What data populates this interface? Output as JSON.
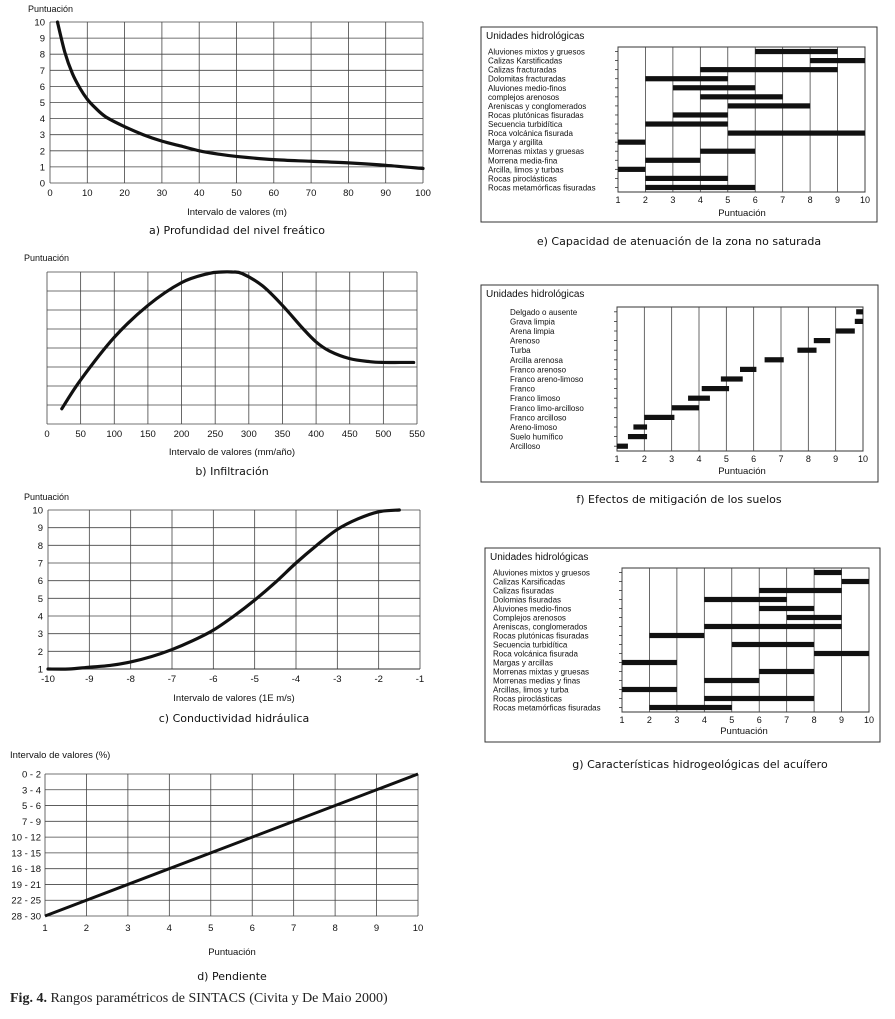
{
  "figure": {
    "label": "Fig. 4.",
    "text": "Rangos paramétricos de SINTACS (Civita y De Maio 2000)"
  },
  "chart_data": [
    {
      "id": "a",
      "type": "line",
      "caption": "a) Profundidad del nivel freático",
      "ylabel": "Puntuación",
      "xlabel": "Intervalo de valores (m)",
      "xlim": [
        0,
        100
      ],
      "ylim": [
        0,
        10
      ],
      "xticks": [
        0,
        10,
        20,
        30,
        40,
        50,
        60,
        70,
        80,
        90,
        100
      ],
      "yticks": [
        0,
        1,
        2,
        3,
        4,
        5,
        6,
        7,
        8,
        9,
        10
      ],
      "x": [
        2,
        4,
        6,
        8,
        10,
        12,
        15,
        20,
        25,
        30,
        35,
        40,
        45,
        50,
        60,
        70,
        80,
        90,
        100
      ],
      "y": [
        10,
        8.1,
        6.8,
        5.9,
        5.2,
        4.7,
        4.1,
        3.5,
        3.0,
        2.6,
        2.3,
        2.0,
        1.8,
        1.65,
        1.45,
        1.35,
        1.25,
        1.1,
        0.9
      ]
    },
    {
      "id": "b",
      "type": "line",
      "caption": "b) Infiltración",
      "ylabel": "Puntuación",
      "xlabel": "Intervalo de valores (mm/año)",
      "xlim": [
        0,
        550
      ],
      "ylim": [
        0,
        10
      ],
      "xticks": [
        0,
        50,
        100,
        150,
        200,
        250,
        300,
        350,
        400,
        450,
        500,
        550
      ],
      "yticks": [],
      "x": [
        22,
        50,
        100,
        150,
        200,
        240,
        260,
        275,
        290,
        320,
        350,
        380,
        400,
        420,
        450,
        480,
        500,
        525,
        545
      ],
      "y": [
        1.0,
        2.9,
        5.7,
        7.8,
        9.3,
        9.9,
        10.0,
        10.0,
        9.9,
        9.1,
        7.8,
        6.3,
        5.4,
        4.8,
        4.3,
        4.1,
        4.05,
        4.05,
        4.05
      ]
    },
    {
      "id": "c",
      "type": "line",
      "caption": "c) Conductividad hidráulica",
      "ylabel": "Puntuación",
      "xlabel": "Intervalo de valores (1E m/s)",
      "xlim": [
        -10,
        -1
      ],
      "ylim": [
        1,
        10
      ],
      "xticks": [
        -10,
        -9,
        -8,
        -7,
        -6,
        -5,
        -4,
        -3,
        -2,
        -1
      ],
      "yticks": [
        1,
        2,
        3,
        4,
        5,
        6,
        7,
        8,
        9,
        10
      ],
      "x": [
        -10,
        -9.5,
        -9,
        -8.5,
        -8,
        -7.5,
        -7,
        -6.5,
        -6,
        -5.5,
        -5,
        -4.5,
        -4,
        -3.5,
        -3,
        -2.5,
        -2,
        -1.5
      ],
      "y": [
        1.0,
        1.0,
        1.1,
        1.2,
        1.4,
        1.7,
        2.1,
        2.6,
        3.2,
        4.0,
        4.9,
        5.9,
        7.0,
        8.0,
        8.9,
        9.5,
        9.9,
        10.0
      ]
    },
    {
      "id": "d",
      "type": "line",
      "caption": "d) Pendiente",
      "ylabel": "Intervalo de valores (%)",
      "xlabel": "Puntuación",
      "xlim": [
        1,
        10
      ],
      "xticks": [
        1,
        2,
        3,
        4,
        5,
        6,
        7,
        8,
        9,
        10
      ],
      "categories": [
        "0 - 2",
        "3 - 4",
        "5 - 6",
        "7 - 9",
        "10 - 12",
        "13 - 15",
        "16 - 18",
        "19 - 21",
        "22 - 25",
        "28 - 30"
      ],
      "x": [
        1,
        10
      ],
      "y": [
        9,
        0
      ]
    },
    {
      "id": "e",
      "type": "bar",
      "caption": "e) Capacidad de atenuación de la zona no saturada",
      "title": "Unidades hidrológicas",
      "xlabel": "Puntuación",
      "xlim": [
        1,
        10
      ],
      "xticks": [
        1,
        2,
        3,
        4,
        5,
        6,
        7,
        8,
        9,
        10
      ],
      "categories": [
        "Aluviones mixtos y gruesos",
        "Calizas Karstificadas",
        "Calizas fracturadas",
        "Dolomitas fracturadas",
        "Aluviones medio-finos",
        "complejos arenosos",
        "Areniscas y conglomerados",
        "Rocas plutónicas fisuradas",
        "Secuencia turbidítica",
        "Roca volcánica fisurada",
        "Marga y argilita",
        "Morrenas mixtas y gruesas",
        "Morrena media-fina",
        "Arcilla, limos y turbas",
        "Rocas piroclásticas",
        "Rocas metamórficas fisuradas"
      ],
      "ranges": [
        [
          6,
          9
        ],
        [
          8,
          10
        ],
        [
          4,
          9
        ],
        [
          2,
          5
        ],
        [
          3,
          6
        ],
        [
          4,
          7
        ],
        [
          5,
          8
        ],
        [
          3,
          5
        ],
        [
          2,
          5
        ],
        [
          5,
          10
        ],
        [
          1,
          2
        ],
        [
          4,
          6
        ],
        [
          2,
          4
        ],
        [
          1,
          2
        ],
        [
          2,
          5
        ],
        [
          2,
          6
        ]
      ]
    },
    {
      "id": "f",
      "type": "bar",
      "caption": "f) Efectos de mitigación de los suelos",
      "title": "Unidades hidrológicas",
      "xlabel": "Puntuación",
      "xlim": [
        1,
        10
      ],
      "xticks": [
        1,
        2,
        3,
        4,
        5,
        6,
        7,
        8,
        9,
        10
      ],
      "categories": [
        "Delgado o ausente",
        "Grava limpia",
        "Arena limpia",
        "Arenoso",
        "Turba",
        "Arcilla arenosa",
        "Franco arenoso",
        "Franco areno-limoso",
        "Franco",
        "Franco limoso",
        "Franco limo-arcilloso",
        "Franco arcilloso",
        "Areno-limoso",
        "Suelo humífico",
        "Arcilloso"
      ],
      "ranges": [
        [
          9.75,
          10
        ],
        [
          9.7,
          10
        ],
        [
          9.0,
          9.7
        ],
        [
          8.2,
          8.8
        ],
        [
          7.6,
          8.3
        ],
        [
          6.4,
          7.1
        ],
        [
          5.5,
          6.1
        ],
        [
          4.8,
          5.6
        ],
        [
          4.1,
          5.1
        ],
        [
          3.6,
          4.4
        ],
        [
          3.0,
          4.0
        ],
        [
          2.0,
          3.1
        ],
        [
          1.6,
          2.1
        ],
        [
          1.4,
          2.1
        ],
        [
          1.0,
          1.4
        ]
      ]
    },
    {
      "id": "g",
      "type": "bar",
      "caption": "g) Características hidrogeológicas del acuífero",
      "title": "Unidades hidrológicas",
      "xlabel": "Puntuación",
      "xlim": [
        1,
        10
      ],
      "xticks": [
        1,
        2,
        3,
        4,
        5,
        6,
        7,
        8,
        9,
        10
      ],
      "categories": [
        "Aluviones mixtos y gruesos",
        "Calizas Karsificadas",
        "Calizas fisuradas",
        "Dolomias fisuradas",
        "Aluviones medio-finos",
        "Complejos arenosos",
        "Areniscas, conglomerados",
        "Rocas plutónicas fisuradas",
        "Secuencia turbidítica",
        "Roca volcánica fisurada",
        "Margas y arcillas",
        "Morrenas mixtas y gruesas",
        "Morrenas medias y finas",
        "Arcillas, limos y turba",
        "Rocas piroclásticas",
        "Rocas metamórficas fisuradas"
      ],
      "ranges": [
        [
          8,
          9
        ],
        [
          9,
          10
        ],
        [
          6,
          9
        ],
        [
          4,
          7
        ],
        [
          6,
          8
        ],
        [
          7,
          9
        ],
        [
          4,
          9
        ],
        [
          2,
          4
        ],
        [
          5,
          8
        ],
        [
          8,
          10
        ],
        [
          1,
          3
        ],
        [
          6,
          8
        ],
        [
          4,
          6
        ],
        [
          1,
          3
        ],
        [
          4,
          8
        ],
        [
          2,
          5
        ]
      ]
    }
  ]
}
